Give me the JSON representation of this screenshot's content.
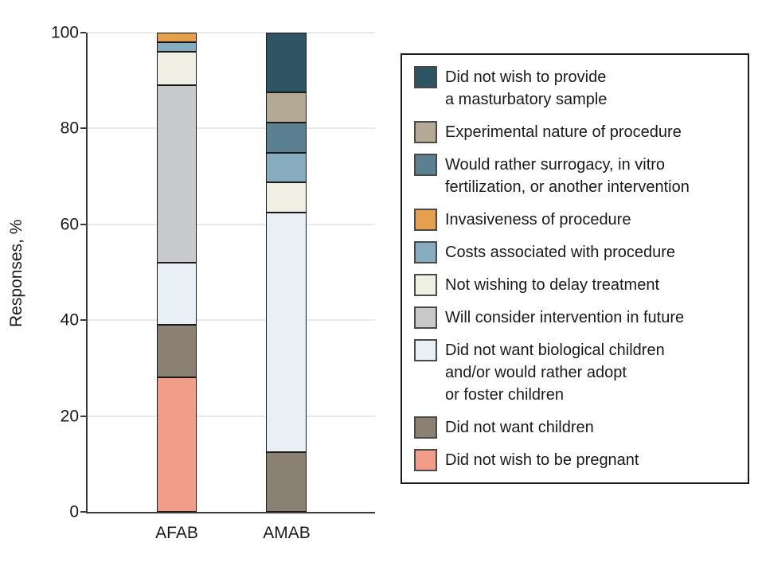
{
  "chart_data": {
    "type": "bar",
    "subtype": "stacked-vertical",
    "title": "",
    "ylabel": "Responses, %",
    "xlabel": "",
    "ylim": [
      0,
      100
    ],
    "yticks": [
      0,
      20,
      40,
      60,
      80,
      100
    ],
    "grid": "horizontal",
    "legend_position": "right",
    "categories": [
      "AFAB",
      "AMAB"
    ],
    "stack_order": "series array order = top-to-bottom in each bar",
    "series": [
      {
        "name": "Did not wish to provide\na masturbatory sample",
        "color": "#2F5565",
        "values": [
          0,
          12.5
        ]
      },
      {
        "name": "Experimental nature of procedure",
        "color": "#B4A994",
        "values": [
          0,
          6.25
        ]
      },
      {
        "name": "Would rather surrogacy, in vitro\nfertilization, or another intervention",
        "color": "#5A8091",
        "values": [
          0,
          6.25
        ]
      },
      {
        "name": "Invasiveness of procedure",
        "color": "#E5A04F",
        "values": [
          2,
          0
        ]
      },
      {
        "name": "Costs associated with procedure",
        "color": "#88ACBF",
        "values": [
          2,
          6.25
        ]
      },
      {
        "name": "Not wishing to delay treatment",
        "color": "#F0EFE3",
        "values": [
          7,
          6.25
        ]
      },
      {
        "name": "Will consider intervention in future",
        "color": "#C8C9CB",
        "values": [
          37,
          0
        ]
      },
      {
        "name": "Did not want biological children\nand/or would rather adopt\nor foster children",
        "color": "#E8F0F5",
        "values": [
          13,
          50
        ]
      },
      {
        "name": "Did not want children",
        "color": "#8B8172",
        "values": [
          11,
          12.5
        ]
      },
      {
        "name": "Did not wish to be pregnant",
        "color": "#F29D88",
        "values": [
          28,
          0
        ]
      }
    ]
  },
  "colors": {
    "axis": "#3b3b3b",
    "grid": "#e9e9e9",
    "text": "#1a1a1a",
    "bar_border": "#1a1a1a",
    "legend_border": "#1a1a1a",
    "background": "#ffffff"
  }
}
